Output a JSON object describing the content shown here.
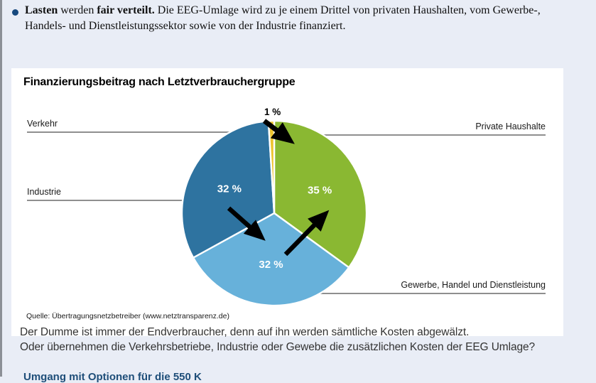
{
  "page": {
    "background": "#e9edf6",
    "accent_blue": "#17497e"
  },
  "intro": {
    "bullet_color": "#17497e",
    "segments": [
      {
        "text": "Lasten",
        "bold": true
      },
      {
        "text": " werden ",
        "bold": false
      },
      {
        "text": "fair verteilt.",
        "bold": true
      },
      {
        "text": " Die EEG-Umlage wird zu je einem Drittel von privaten Haushalten, vom Gewerbe-, Handels- und Dienstleistungssektor sowie von der Industrie finanziert.",
        "bold": false
      }
    ]
  },
  "chart_box": {
    "title": "Finanzierungsbeitrag nach Letztverbrauchergruppe",
    "source": "Quelle: Übertragungsnetzbetreiber (www.netztransparenz.de)"
  },
  "chart_data": {
    "type": "pie",
    "title": "Finanzierungsbeitrag nach Letztverbrauchergruppe",
    "start_angle_deg": 0,
    "direction": "clockwise",
    "total": 100,
    "slices": [
      {
        "label": "Private Haushalte",
        "value": 35,
        "pct_label": "35 %",
        "color": "#8ab832"
      },
      {
        "label": "Gewerbe, Handel und Dienstleistung",
        "value": 32,
        "pct_label": "32 %",
        "color": "#67b1da"
      },
      {
        "label": "Industrie",
        "value": 32,
        "pct_label": "32 %",
        "color": "#2e73a0"
      },
      {
        "label": "Verkehr",
        "value": 1,
        "pct_label": "1 %",
        "color": "#edc42f"
      }
    ],
    "source": "Quelle: Übertragungsnetzbetreiber (www.netztransparenz.de)"
  },
  "callouts": {
    "verkehr": "Verkehr",
    "industrie": "Industrie",
    "private_haushalte": "Private Haushalte",
    "gewerbe": "Gewerbe, Handel und Dienstleistung",
    "verkehr_pct": "1 %"
  },
  "body": {
    "line1": "Der Dumme ist immer der Endverbraucher, denn auf ihn werden sämtliche Kosten abgewälzt.",
    "line2": "Oder übernehmen die Verkehrsbetriebe, Industrie oder Gewebe die zusätzlichen Kosten der EEG Umlage?"
  },
  "footer": {
    "clipped_heading": "Umgang mit Optionen für die 550 K",
    "heading_color": "#1e4e79"
  }
}
